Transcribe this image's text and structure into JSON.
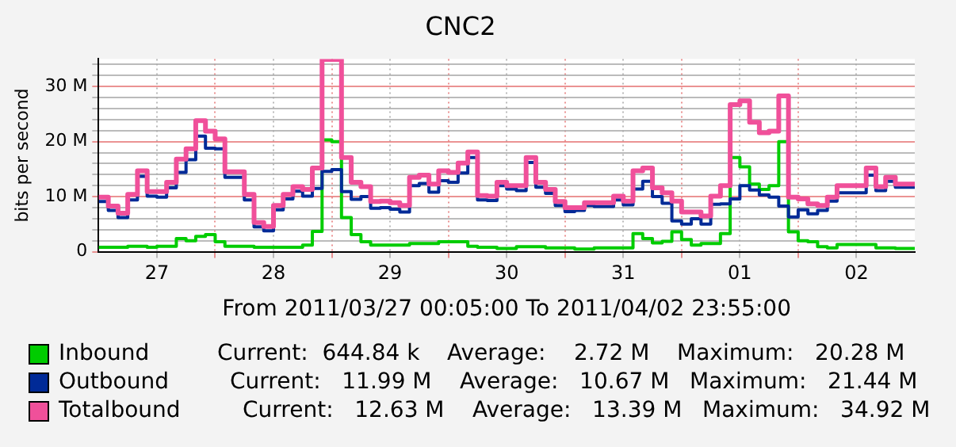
{
  "chart_data": {
    "type": "step",
    "title": "CNC2",
    "xlabel": "From 2011/03/27 00:05:00 To 2011/04/02 23:55:00",
    "ylabel": "bits per second",
    "x": [
      "2011-03-27T00:00",
      "2011-03-27T02:00",
      "2011-03-27T04:00",
      "2011-03-27T06:00",
      "2011-03-27T08:00",
      "2011-03-27T10:00",
      "2011-03-27T12:00",
      "2011-03-27T14:00",
      "2011-03-27T16:00",
      "2011-03-27T18:00",
      "2011-03-27T20:00",
      "2011-03-27T22:00",
      "2011-03-28T00:00",
      "2011-03-28T02:00",
      "2011-03-28T04:00",
      "2011-03-28T06:00",
      "2011-03-28T08:00",
      "2011-03-28T10:00",
      "2011-03-28T12:00",
      "2011-03-28T14:00",
      "2011-03-28T16:00",
      "2011-03-28T18:00",
      "2011-03-28T20:00",
      "2011-03-28T22:00",
      "2011-03-29T00:00",
      "2011-03-29T02:00",
      "2011-03-29T04:00",
      "2011-03-29T06:00",
      "2011-03-29T08:00",
      "2011-03-29T10:00",
      "2011-03-29T12:00",
      "2011-03-29T14:00",
      "2011-03-29T16:00",
      "2011-03-29T18:00",
      "2011-03-29T20:00",
      "2011-03-29T22:00",
      "2011-03-30T00:00",
      "2011-03-30T02:00",
      "2011-03-30T04:00",
      "2011-03-30T06:00",
      "2011-03-30T08:00",
      "2011-03-30T10:00",
      "2011-03-30T12:00",
      "2011-03-30T14:00",
      "2011-03-30T16:00",
      "2011-03-30T18:00",
      "2011-03-30T20:00",
      "2011-03-30T22:00",
      "2011-03-31T00:00",
      "2011-03-31T02:00",
      "2011-03-31T04:00",
      "2011-03-31T06:00",
      "2011-03-31T08:00",
      "2011-03-31T10:00",
      "2011-03-31T12:00",
      "2011-03-31T14:00",
      "2011-03-31T16:00",
      "2011-03-31T18:00",
      "2011-03-31T20:00",
      "2011-03-31T22:00",
      "2011-04-01T00:00",
      "2011-04-01T02:00",
      "2011-04-01T04:00",
      "2011-04-01T06:00",
      "2011-04-01T08:00",
      "2011-04-01T10:00",
      "2011-04-01T12:00",
      "2011-04-01T14:00",
      "2011-04-01T16:00",
      "2011-04-01T18:00",
      "2011-04-01T20:00",
      "2011-04-01T22:00",
      "2011-04-02T00:00",
      "2011-04-02T02:00",
      "2011-04-02T04:00",
      "2011-04-02T06:00",
      "2011-04-02T08:00",
      "2011-04-02T10:00",
      "2011-04-02T12:00",
      "2011-04-02T14:00",
      "2011-04-02T16:00",
      "2011-04-02T18:00",
      "2011-04-02T20:00",
      "2011-04-02T22:00",
      "2011-04-03T00:00"
    ],
    "series": [
      {
        "name": "Inbound",
        "color": "#00cc00",
        "values": [
          0.8,
          0.8,
          0.8,
          0.8,
          1.0,
          1.0,
          0.8,
          1.0,
          1.0,
          2.4,
          2.0,
          2.8,
          3.1,
          1.8,
          1.0,
          1.0,
          1.0,
          0.8,
          0.8,
          0.8,
          0.8,
          0.8,
          1.2,
          3.7,
          20.3,
          20.0,
          6.2,
          3.1,
          1.8,
          1.2,
          1.2,
          1.2,
          1.2,
          1.5,
          1.5,
          1.5,
          1.8,
          1.8,
          1.8,
          1.0,
          0.8,
          0.8,
          0.6,
          0.6,
          0.9,
          0.9,
          0.9,
          0.7,
          0.7,
          0.7,
          0.5,
          0.5,
          0.7,
          0.7,
          0.7,
          0.7,
          3.3,
          2.4,
          1.6,
          1.9,
          3.6,
          2.2,
          1.2,
          1.5,
          1.5,
          3.3,
          17.1,
          15.4,
          12.3,
          11.3,
          12.0,
          20.0,
          3.6,
          2.0,
          1.8,
          0.9,
          0.7,
          1.3,
          1.3,
          1.3,
          1.3,
          0.7,
          0.7,
          0.6,
          0.6
        ]
      },
      {
        "name": "Outbound",
        "color": "#002a97",
        "values": [
          9.1,
          9.1,
          7.5,
          6.2,
          9.4,
          13.7,
          10.1,
          9.9,
          11.6,
          14.4,
          16.7,
          21.0,
          18.8,
          18.7,
          13.5,
          13.5,
          9.4,
          4.5,
          3.8,
          7.6,
          9.6,
          11.0,
          10.1,
          11.5,
          14.6,
          14.9,
          10.9,
          9.5,
          10.0,
          7.9,
          8.0,
          7.7,
          7.2,
          12.0,
          12.4,
          10.8,
          12.9,
          12.6,
          14.3,
          17.1,
          9.4,
          9.3,
          12.0,
          11.4,
          11.1,
          16.2,
          11.7,
          10.6,
          8.4,
          7.3,
          7.5,
          8.4,
          8.2,
          8.2,
          9.4,
          8.5,
          11.4,
          12.8,
          10.0,
          8.8,
          5.6,
          5.0,
          6.0,
          5.0,
          8.6,
          8.7,
          9.6,
          12.0,
          11.2,
          10.3,
          9.9,
          8.3,
          6.3,
          7.6,
          6.9,
          7.5,
          9.2,
          10.7,
          10.7,
          10.7,
          13.9,
          11.1,
          12.8,
          11.7,
          11.7
        ]
      },
      {
        "name": "Totalbound",
        "color": "#f0509a",
        "values": [
          9.9,
          9.9,
          8.3,
          7.0,
          10.4,
          14.7,
          10.9,
          10.9,
          12.6,
          16.8,
          18.7,
          23.8,
          21.9,
          20.5,
          14.5,
          14.5,
          10.4,
          5.3,
          4.6,
          8.4,
          10.4,
          11.8,
          11.3,
          15.2,
          34.9,
          34.9,
          17.1,
          12.6,
          11.8,
          9.1,
          9.2,
          8.9,
          8.4,
          13.5,
          13.9,
          12.3,
          14.7,
          14.4,
          16.1,
          18.1,
          10.2,
          10.1,
          12.6,
          12.0,
          12.0,
          17.1,
          12.6,
          11.3,
          9.1,
          8.0,
          8.0,
          8.9,
          8.9,
          8.9,
          10.1,
          9.2,
          14.7,
          15.2,
          11.6,
          10.7,
          9.2,
          7.2,
          7.2,
          6.5,
          10.1,
          12.0,
          26.7,
          27.4,
          23.5,
          21.6,
          21.9,
          28.3,
          9.9,
          9.6,
          8.7,
          8.4,
          9.9,
          12.0,
          12.0,
          12.0,
          15.2,
          11.8,
          13.5,
          12.3,
          12.3
        ]
      }
    ],
    "xlim": [
      "2011-03-27T00:00",
      "2011-04-03T00:00"
    ],
    "xticks": [
      {
        "value": "2011-03-27T12:00",
        "label": "27"
      },
      {
        "value": "2011-03-28T00:00",
        "label": null
      },
      {
        "value": "2011-03-28T12:00",
        "label": "28"
      },
      {
        "value": "2011-03-29T00:00",
        "label": null
      },
      {
        "value": "2011-03-29T12:00",
        "label": "29"
      },
      {
        "value": "2011-03-30T00:00",
        "label": null
      },
      {
        "value": "2011-03-30T12:00",
        "label": "30"
      },
      {
        "value": "2011-03-31T00:00",
        "label": null
      },
      {
        "value": "2011-03-31T12:00",
        "label": "31"
      },
      {
        "value": "2011-04-01T00:00",
        "label": null
      },
      {
        "value": "2011-04-01T12:00",
        "label": "01"
      },
      {
        "value": "2011-04-02T00:00",
        "label": null
      },
      {
        "value": "2011-04-02T12:00",
        "label": "02"
      }
    ],
    "ylim": [
      0,
      35
    ],
    "yticks": [
      0,
      {
        "value": 2,
        "label": null
      },
      {
        "value": 4,
        "label": null
      },
      {
        "value": 6,
        "label": null
      },
      {
        "value": 8,
        "label": null
      },
      {
        "value": 10,
        "label": "10 M"
      },
      {
        "value": 12,
        "label": null
      },
      {
        "value": 14,
        "label": null
      },
      {
        "value": 16,
        "label": null
      },
      {
        "value": 18,
        "label": null
      },
      {
        "value": 20,
        "label": "20 M"
      },
      {
        "value": 22,
        "label": null
      },
      {
        "value": 24,
        "label": null
      },
      {
        "value": 26,
        "label": null
      },
      {
        "value": 28,
        "label": null
      },
      {
        "value": 30,
        "label": "30 M"
      },
      {
        "value": 32,
        "label": null
      },
      {
        "value": 34,
        "label": null
      }
    ],
    "grid": true,
    "legend": "bottom",
    "marker": "none",
    "line_style": "solid",
    "annotations": [
      "Current:  644.84 k",
      "Average:    2.72 M",
      "Maximum:   20.28 M",
      "Current:   11.99 M",
      "Average:   10.67 M",
      "Maximum:   21.44 M",
      "Current:   12.63 M",
      "Average:   13.39 M",
      "Maximum:   34.92 M"
    ]
  }
}
